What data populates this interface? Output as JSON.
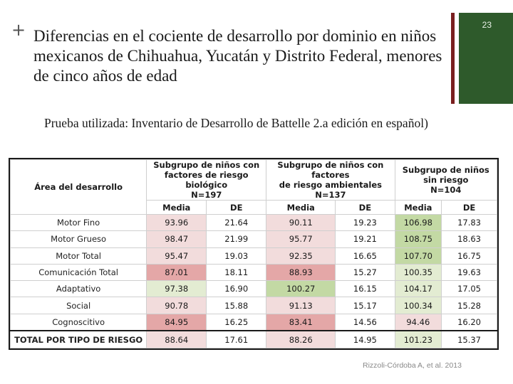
{
  "slide": {
    "plus_glyph": "+",
    "title": "Diferencias en el cociente de desarrollo por dominio en niños mexicanos de Chihuahua, Yucatán y Distrito Federal, menores de cinco años de edad",
    "page_number": "23",
    "subtitle": "Prueba utilizada: Inventario de Desarrollo de Battelle 2.a edición en español)",
    "citation": "Rizzoli-Córdoba A, et al. 2013",
    "colors": {
      "accent_red": "#7a1f1f",
      "accent_green": "#2e5a2b"
    }
  },
  "table": {
    "area_header": "Área del desarrollo",
    "groups": [
      {
        "line1": "Subgrupo de niños con",
        "line2": "factores de riesgo biológico",
        "line3": "N=197"
      },
      {
        "line1": "Subgrupo de niños con factores",
        "line2": "de riesgo ambientales",
        "line3": "N=137"
      },
      {
        "line1": "Subgrupo de niños",
        "line2": "sin riesgo",
        "line3": "N=104"
      }
    ],
    "subheaders": [
      "Media",
      "DE",
      "Media",
      "DE",
      "Media",
      "DE"
    ],
    "rows": [
      {
        "label": "Motor Fino",
        "cells": [
          "93.96",
          "21.64",
          "90.11",
          "19.23",
          "106.98",
          "17.83"
        ],
        "fills": [
          "pink",
          "none",
          "pink",
          "none",
          "green",
          "none"
        ]
      },
      {
        "label": "Motor Grueso",
        "cells": [
          "98.47",
          "21.99",
          "95.77",
          "19.21",
          "108.75",
          "18.63"
        ],
        "fills": [
          "pink",
          "none",
          "pink",
          "none",
          "green",
          "none"
        ]
      },
      {
        "label": "Motor Total",
        "cells": [
          "95.47",
          "19.03",
          "92.35",
          "16.65",
          "107.70",
          "16.75"
        ],
        "fills": [
          "pink",
          "none",
          "pink",
          "none",
          "green",
          "none"
        ]
      },
      {
        "label": "Comunicación Total",
        "cells": [
          "87.01",
          "18.11",
          "88.93",
          "15.27",
          "100.35",
          "19.63"
        ],
        "fills": [
          "rose",
          "none",
          "rose",
          "none",
          "lgreen",
          "none"
        ]
      },
      {
        "label": "Adaptativo",
        "cells": [
          "97.38",
          "16.90",
          "100.27",
          "16.15",
          "104.17",
          "17.05"
        ],
        "fills": [
          "lgreen",
          "none",
          "green",
          "none",
          "lgreen",
          "none"
        ]
      },
      {
        "label": "Social",
        "cells": [
          "90.78",
          "15.88",
          "91.13",
          "15.17",
          "100.34",
          "15.28"
        ],
        "fills": [
          "pink",
          "none",
          "pink",
          "none",
          "lgreen",
          "none"
        ]
      },
      {
        "label": "Cognoscitivo",
        "cells": [
          "84.95",
          "16.25",
          "83.41",
          "14.56",
          "94.46",
          "16.20"
        ],
        "fills": [
          "rose",
          "none",
          "rose",
          "none",
          "pink",
          "none"
        ]
      },
      {
        "label": "TOTAL POR TIPO DE RIESGO",
        "cells": [
          "88.64",
          "17.61",
          "88.26",
          "14.95",
          "101.23",
          "15.37"
        ],
        "fills": [
          "pink",
          "none",
          "pink",
          "none",
          "lgreen",
          "none"
        ]
      }
    ]
  }
}
